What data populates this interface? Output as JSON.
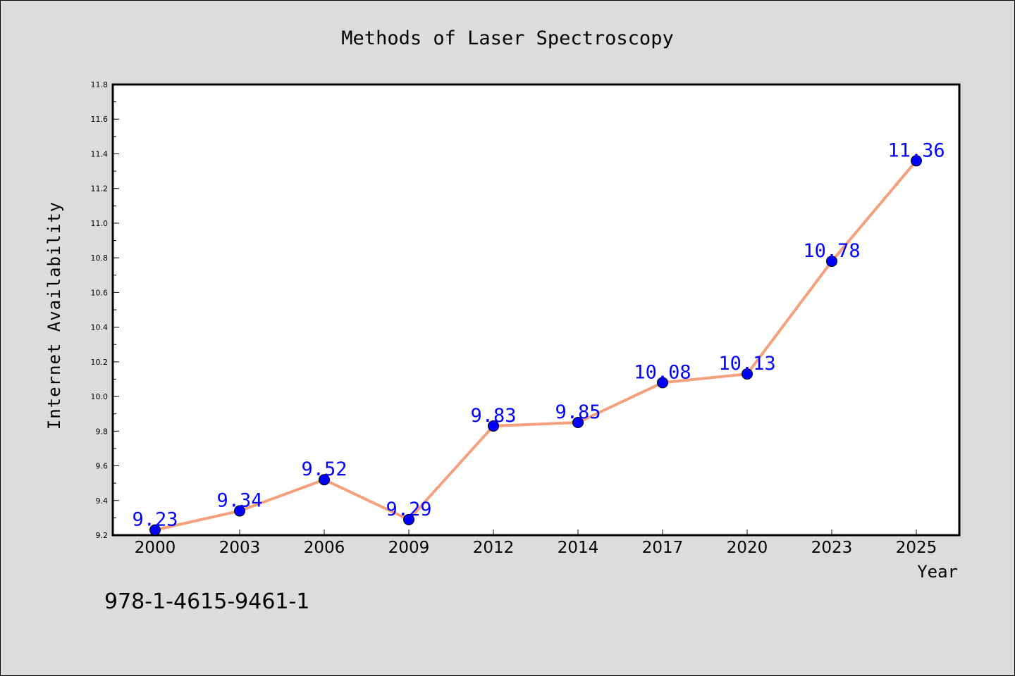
{
  "chart_data": {
    "type": "line",
    "title": "Methods of Laser Spectroscopy",
    "xlabel": "Year",
    "ylabel": "Internet Availability",
    "categories": [
      "2000",
      "2003",
      "2006",
      "2009",
      "2012",
      "2014",
      "2017",
      "2020",
      "2023",
      "2025"
    ],
    "values": [
      9.23,
      9.34,
      9.52,
      9.29,
      9.83,
      9.85,
      10.08,
      10.13,
      10.78,
      11.36
    ],
    "value_labels": [
      "9.23",
      "9.34",
      "9.52",
      "9.29",
      "9.83",
      "9.85",
      "10.08",
      "10.13",
      "10.78",
      "11.36"
    ],
    "ylim": [
      9.2,
      11.8
    ],
    "yticks": [
      "9.2",
      "9.4",
      "9.6",
      "9.8",
      "10.0",
      "10.2",
      "10.4",
      "10.6",
      "10.8",
      "11.0",
      "11.2",
      "11.4",
      "11.6",
      "11.8"
    ],
    "grid": false,
    "colors": {
      "line": "#f4a07c",
      "marker": "#0000ff",
      "data_label": "#0000ff",
      "background": "#dcdcdc",
      "plot_background": "#ffffff"
    }
  },
  "footer_text": "978-1-4615-9461-1"
}
